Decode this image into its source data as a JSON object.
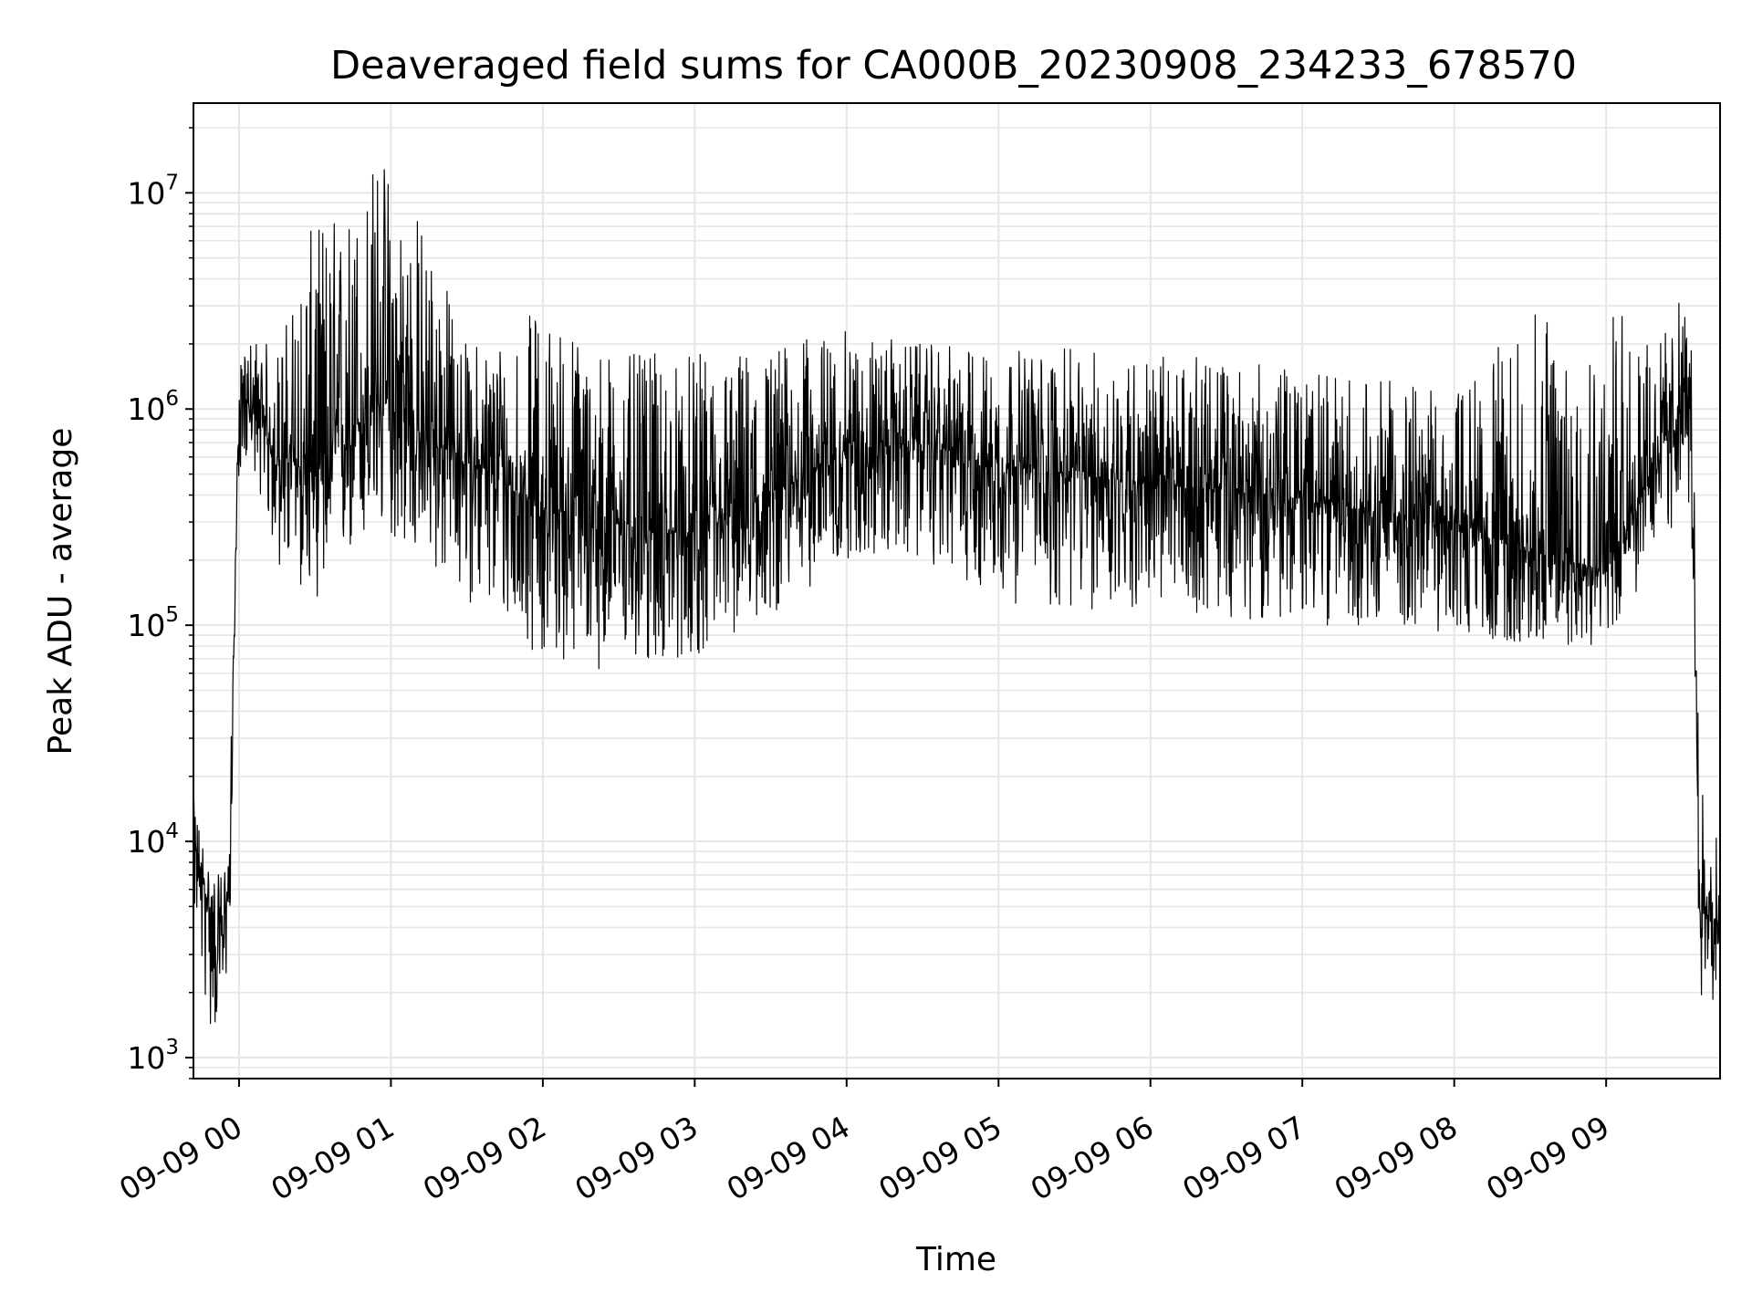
{
  "chart_data": {
    "type": "line",
    "title": "Deaveraged field sums for CA000B_20230908_234233_678570",
    "xlabel": "Time",
    "ylabel": "Peak ADU - average",
    "yscale": "log",
    "ylim": [
      800,
      26000000
    ],
    "xlim": [
      "2023-09-08 23:42",
      "2023-09-09 09:45"
    ],
    "grid": true,
    "x_ticks": [
      "09-09 00",
      "09-09 01",
      "09-09 02",
      "09-09 03",
      "09-09 04",
      "09-09 05",
      "09-09 06",
      "09-09 07",
      "09-09 08",
      "09-09 09"
    ],
    "y_ticks": [
      {
        "value": 1000,
        "base": "10",
        "exp": "3"
      },
      {
        "value": 10000,
        "base": "10",
        "exp": "4"
      },
      {
        "value": 100000,
        "base": "10",
        "exp": "5"
      },
      {
        "value": 1000000,
        "base": "10",
        "exp": "6"
      },
      {
        "value": 10000000,
        "base": "10",
        "exp": "7"
      }
    ],
    "line_color": "#000000",
    "grid_color": "#e6e6e6",
    "series": [
      {
        "x": [
          "2023-09-08 23:42",
          "2023-09-08 23:48",
          "2023-09-08 23:52",
          "2023-09-08 23:56",
          "2023-09-09 00:00",
          "2023-09-09 00:05",
          "2023-09-09 00:15",
          "2023-09-09 00:30",
          "2023-09-09 00:45",
          "2023-09-09 00:55",
          "2023-09-09 01:00",
          "2023-09-09 01:15",
          "2023-09-09 01:30",
          "2023-09-09 02:00",
          "2023-09-09 02:30",
          "2023-09-09 03:00",
          "2023-09-09 03:30",
          "2023-09-09 04:00",
          "2023-09-09 04:30",
          "2023-09-09 05:00",
          "2023-09-09 05:30",
          "2023-09-09 06:00",
          "2023-09-09 06:30",
          "2023-09-09 07:00",
          "2023-09-09 07:30",
          "2023-09-09 08:00",
          "2023-09-09 08:30",
          "2023-09-09 09:00",
          "2023-09-09 09:20",
          "2023-09-09 09:33",
          "2023-09-09 09:37",
          "2023-09-09 09:45"
        ],
        "y": [
          10000,
          5000,
          3000,
          6000,
          1100000,
          1000000,
          600000,
          500000,
          800000,
          1100000,
          1000000,
          700000,
          600000,
          350000,
          300000,
          250000,
          400000,
          650000,
          700000,
          550000,
          500000,
          450000,
          420000,
          380000,
          330000,
          300000,
          220000,
          180000,
          600000,
          1200000,
          5000,
          4000
        ],
        "low": [
          5000,
          1300,
          1300,
          2500,
          500000,
          600000,
          180000,
          130000,
          200000,
          230000,
          250000,
          180000,
          130000,
          70000,
          60000,
          70000,
          110000,
          200000,
          200000,
          130000,
          110000,
          120000,
          110000,
          100000,
          100000,
          90000,
          80000,
          80000,
          200000,
          350000,
          1800,
          1800
        ],
        "high": [
          16000,
          8000,
          7000,
          10000,
          1500000,
          2300000,
          1900000,
          7800000,
          9000000,
          17000000,
          14000000,
          7000000,
          2000000,
          3000000,
          1800000,
          1800000,
          2000000,
          2300000,
          2000000,
          1900000,
          1900000,
          1800000,
          1700000,
          1500000,
          1400000,
          1200000,
          2800000,
          3300000,
          2000000,
          4000000,
          30000,
          9000
        ]
      }
    ]
  }
}
